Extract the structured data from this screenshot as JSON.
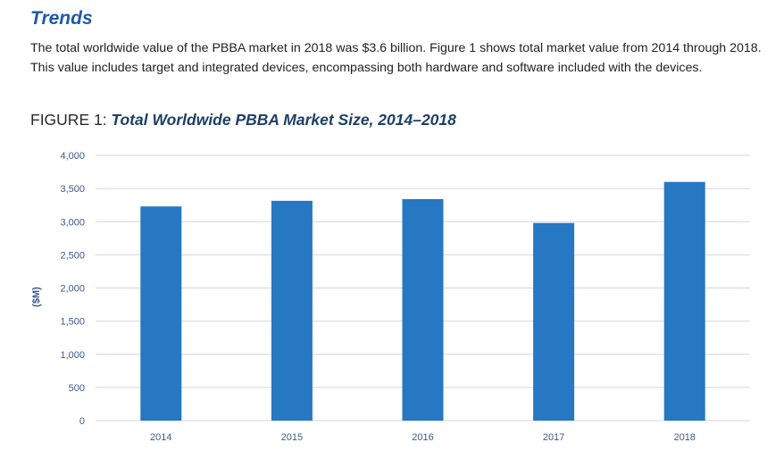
{
  "section": {
    "title": "Trends",
    "intro": "The total worldwide value of the PBBA market in 2018 was $3.6 billion. Figure 1 shows total market value from 2014 through 2018. This value includes target and integrated devices, encompassing both hardware and software included with the devices."
  },
  "figure": {
    "label": "FIGURE 1: ",
    "title": "Total Worldwide PBBA Market Size, 2014–2018"
  },
  "chart_data": {
    "type": "bar",
    "categories": [
      "2014",
      "2015",
      "2016",
      "2017",
      "2018"
    ],
    "values": [
      3230,
      3315,
      3340,
      2980,
      3600
    ],
    "ylabel": "($M)",
    "ylim": [
      0,
      4000
    ],
    "yticks": [
      0,
      500,
      1000,
      1500,
      2000,
      2500,
      3000,
      3500,
      4000
    ],
    "ytick_labels": [
      "0",
      "500",
      "1,000",
      "1,500",
      "2,000",
      "2,500",
      "3,000",
      "3,500",
      "4,000"
    ],
    "grid": true,
    "legend": "none",
    "colors": {
      "bar": "#2678c2",
      "grid": "#d0d7e2",
      "tick_text": "#3a5b8a"
    }
  }
}
